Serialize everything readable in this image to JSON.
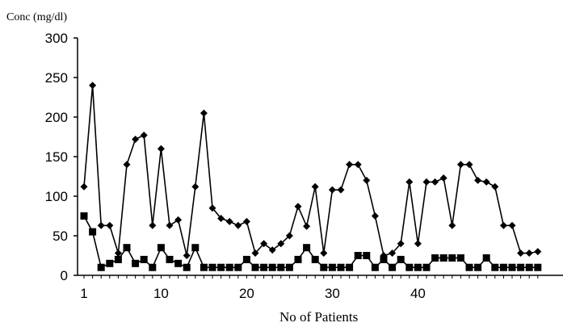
{
  "chart_data": {
    "type": "line",
    "ylabel": "Conc (mg/dl)",
    "xlabel": "No of Patients",
    "ylim": [
      0,
      300
    ],
    "xlim": [
      1,
      54
    ],
    "yticks": [
      "0",
      "50",
      "100",
      "150",
      "200",
      "250",
      "300"
    ],
    "xticks": [
      "1",
      "10",
      "20",
      "30",
      "40"
    ],
    "x": [
      1,
      2,
      3,
      4,
      5,
      6,
      7,
      8,
      9,
      10,
      11,
      12,
      13,
      14,
      15,
      16,
      17,
      18,
      19,
      20,
      21,
      22,
      23,
      24,
      25,
      26,
      27,
      28,
      29,
      30,
      31,
      32,
      33,
      34,
      35,
      36,
      37,
      38,
      39,
      40,
      41,
      42,
      43,
      44,
      45,
      46,
      47,
      48,
      49,
      50,
      51,
      52,
      53,
      54
    ],
    "series": [
      {
        "marker": "diamond",
        "color": "#000000",
        "values": [
          112,
          240,
          63,
          63,
          28,
          140,
          172,
          177,
          63,
          160,
          63,
          70,
          25,
          112,
          205,
          85,
          72,
          68,
          63,
          68,
          28,
          40,
          32,
          40,
          50,
          87,
          62,
          112,
          28,
          108,
          108,
          140,
          140,
          120,
          75,
          25,
          28,
          40,
          118,
          40,
          118,
          118,
          123,
          63,
          140,
          140,
          120,
          118,
          112,
          63,
          63,
          28,
          28,
          30
        ]
      },
      {
        "marker": "square",
        "color": "#000000",
        "values": [
          75,
          55,
          10,
          15,
          20,
          35,
          15,
          20,
          10,
          35,
          20,
          15,
          10,
          35,
          10,
          10,
          10,
          10,
          10,
          20,
          10,
          10,
          10,
          10,
          10,
          20,
          35,
          20,
          10,
          10,
          10,
          10,
          25,
          25,
          10,
          20,
          10,
          20,
          10,
          10,
          10,
          22,
          22,
          22,
          22,
          10,
          10,
          22,
          10,
          10,
          10,
          10,
          10,
          10
        ]
      }
    ],
    "grid": false,
    "legend": "none"
  }
}
